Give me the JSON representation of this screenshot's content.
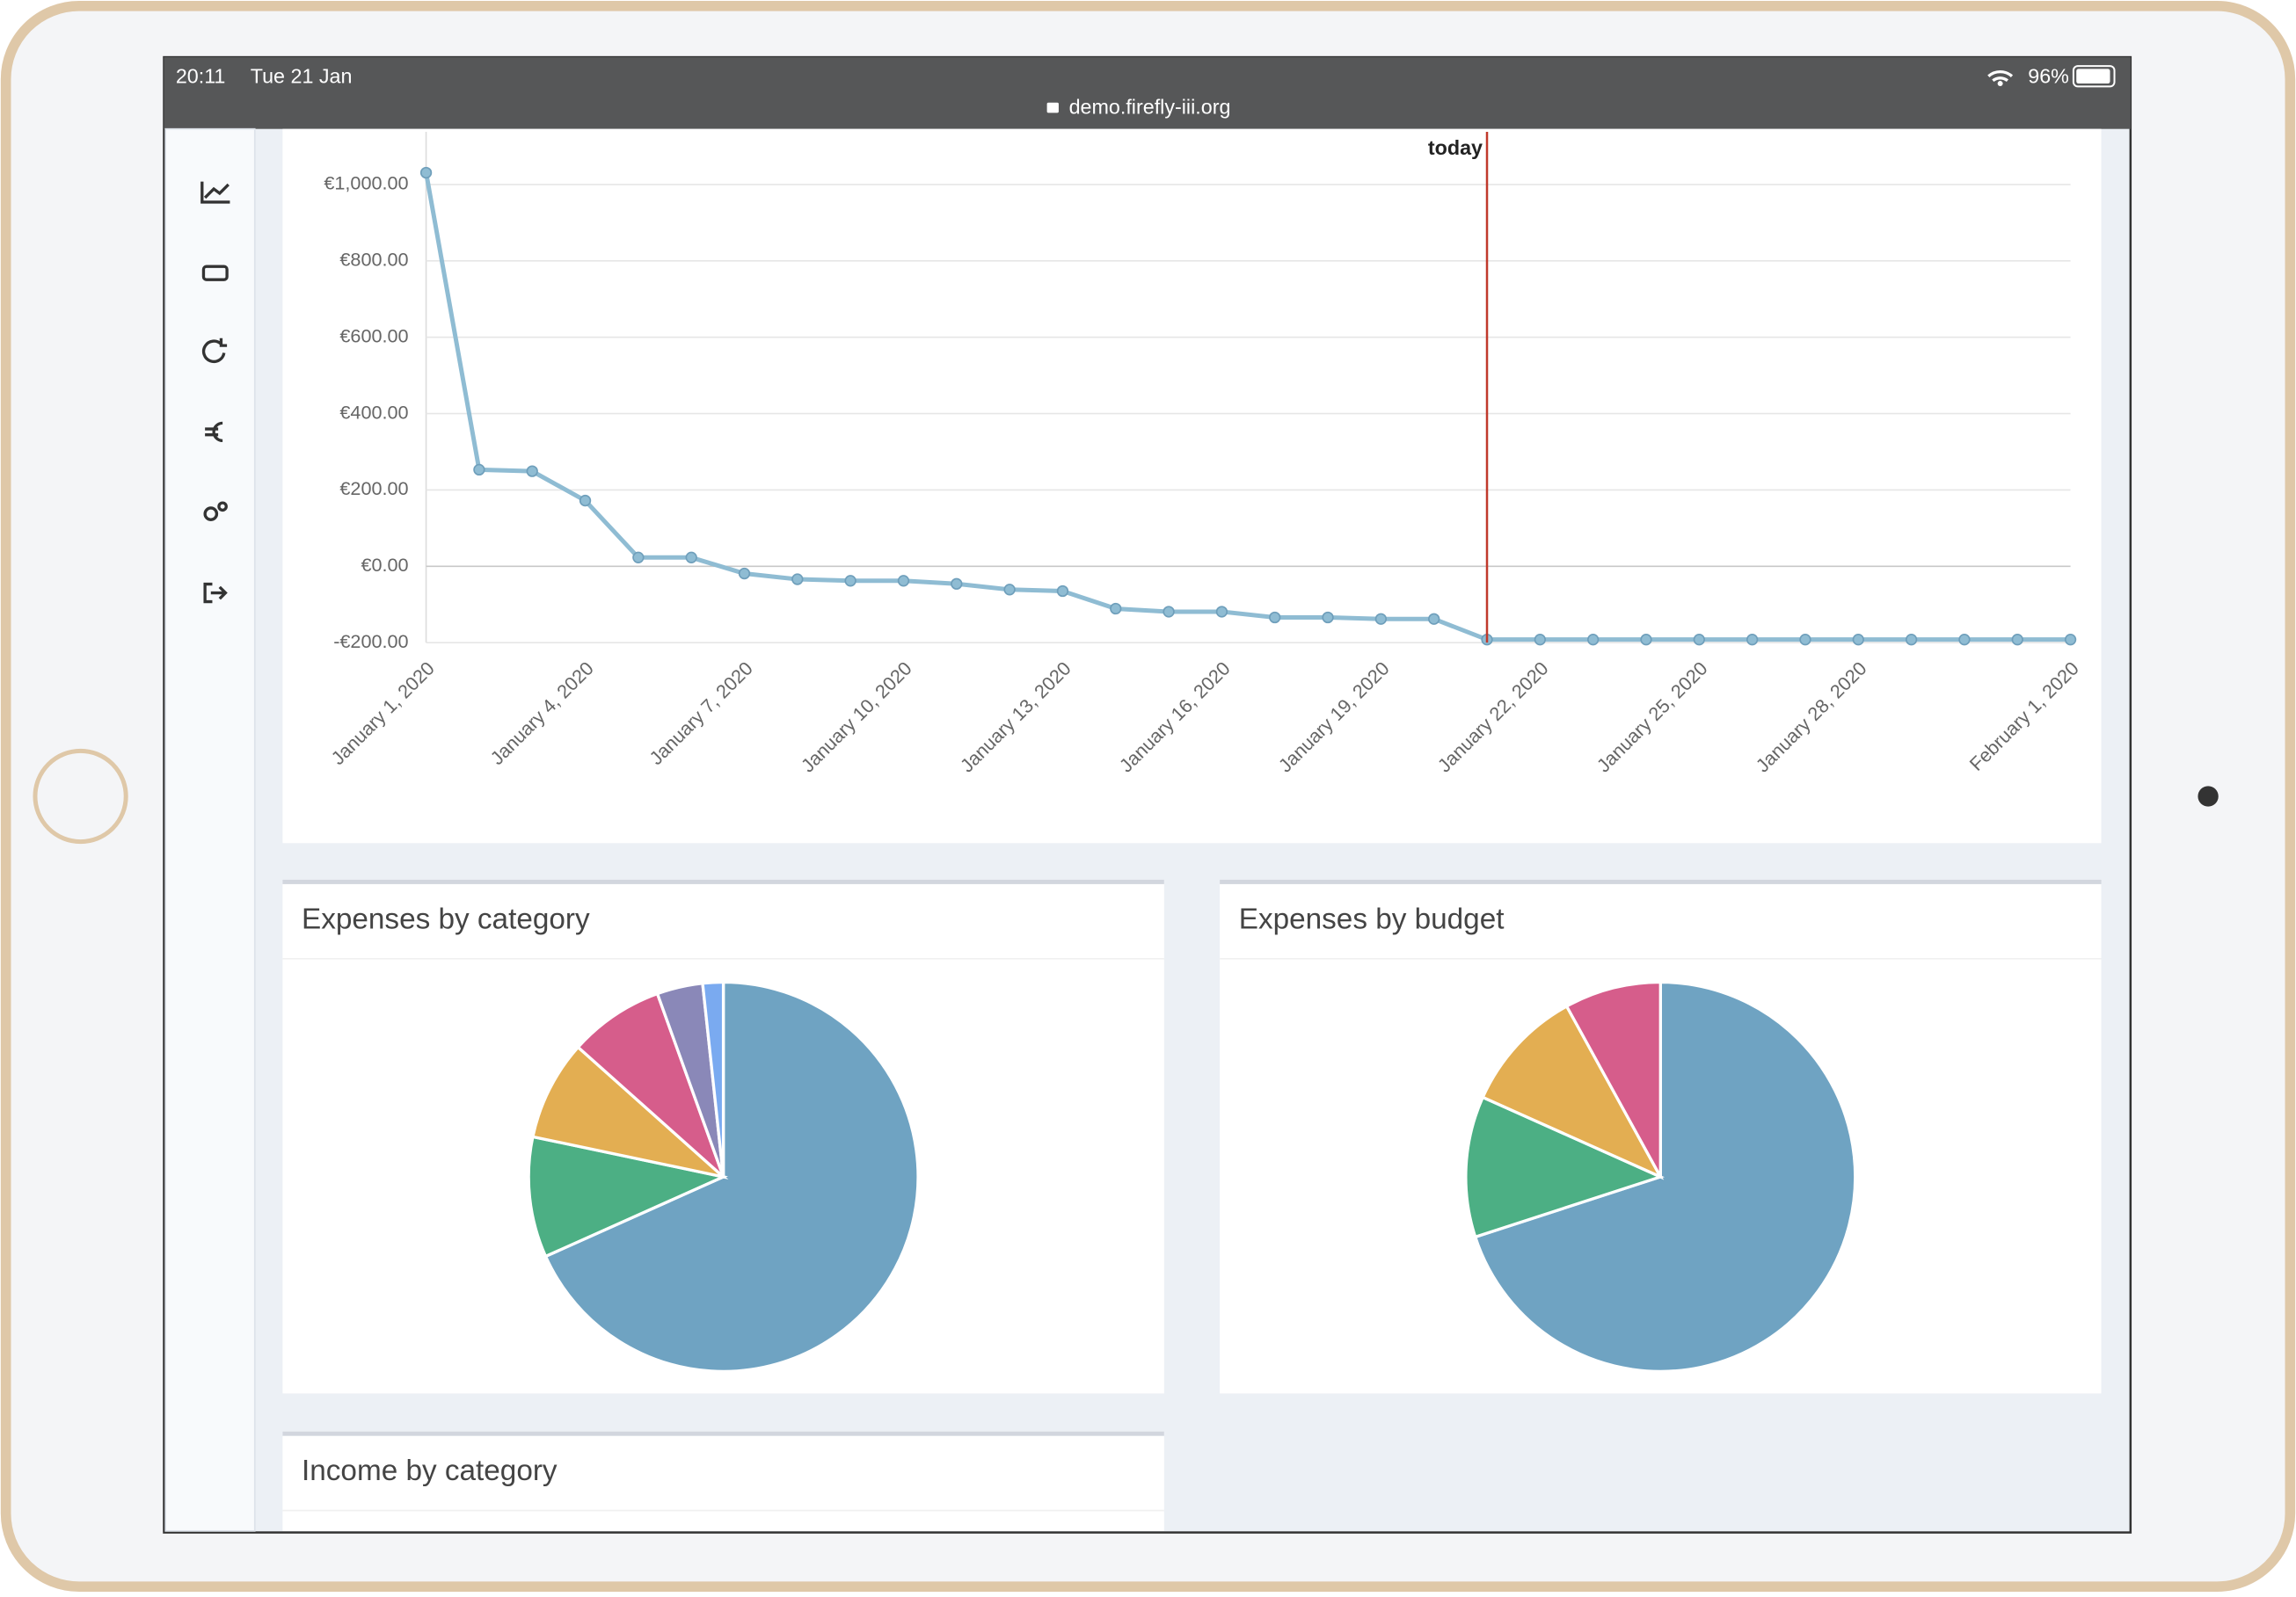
{
  "status_bar": {
    "time": "20:11",
    "date": "Tue 21 Jan",
    "battery": "96%",
    "url": "demo.firefly-iii.org"
  },
  "panels": [
    "Expenses by category",
    "Expenses by budget",
    "Income by category"
  ],
  "chart_data": [
    {
      "type": "line",
      "color": "#8fbcd3",
      "categories": [
        "January 1, 2020",
        null,
        null,
        "January 4, 2020",
        null,
        null,
        "January 7, 2020",
        null,
        null,
        "January 10, 2020",
        null,
        null,
        "January 13, 2020",
        null,
        null,
        "January 16, 2020",
        null,
        null,
        "January 19, 2020",
        null,
        null,
        "January 22, 2020",
        null,
        null,
        "January 25, 2020",
        null,
        null,
        "January 28, 2020",
        null,
        null,
        null,
        "February 1, 2020"
      ],
      "values": [
        1031,
        253,
        249,
        172,
        23,
        23,
        -19,
        -34,
        -38,
        -38,
        -46,
        -61,
        -65,
        -111,
        -119,
        -119,
        -134,
        -134,
        -138,
        -138,
        -192,
        -192,
        -192,
        -192,
        -192,
        -192,
        -192,
        -192,
        -192,
        -192,
        -192,
        -192
      ],
      "ylim": [
        -200,
        1138
      ],
      "yticks": [
        {
          "value": -200,
          "label": "-€200.00"
        },
        {
          "value": 0,
          "label": "€0.00"
        },
        {
          "value": 200,
          "label": "€200.00"
        },
        {
          "value": 400,
          "label": "€400.00"
        },
        {
          "value": 600,
          "label": "€600.00"
        },
        {
          "value": 800,
          "label": "€800.00"
        },
        {
          "value": 1000,
          "label": "€1,000.00"
        }
      ],
      "grid": true,
      "annotations": [
        {
          "label": "today",
          "at": 20,
          "color": "#c0392b"
        }
      ]
    },
    {
      "type": "pie",
      "values": [
        68.3,
        10,
        8.3,
        7.9,
        3.8,
        1.7
      ],
      "colors": [
        "#6fa3c2",
        "#4caf84",
        "#e3ae52",
        "#d65d8b",
        "#8a88b8",
        "#7aaaf0"
      ]
    },
    {
      "type": "pie",
      "values": [
        70,
        11.7,
        10.3,
        8
      ],
      "colors": [
        "#6fa3c2",
        "#4caf84",
        "#e3ae52",
        "#d65d8b"
      ]
    }
  ]
}
